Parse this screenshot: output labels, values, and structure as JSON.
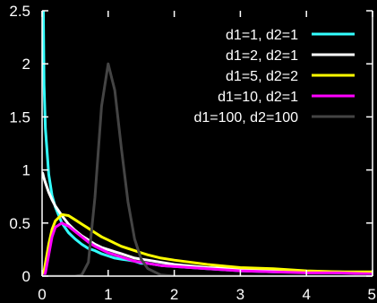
{
  "chart_data": {
    "type": "line",
    "title": "",
    "xlabel": "",
    "ylabel": "",
    "xlim": [
      0,
      5
    ],
    "ylim": [
      0,
      2.5
    ],
    "grid": false,
    "legend_position": "top-right",
    "background": "#000000",
    "axis_color": "#ffffff",
    "x_ticks": [
      {
        "value": 0,
        "label": "0"
      },
      {
        "value": 1,
        "label": "1"
      },
      {
        "value": 2,
        "label": "2"
      },
      {
        "value": 3,
        "label": "3"
      },
      {
        "value": 4,
        "label": "4"
      },
      {
        "value": 5,
        "label": "5"
      }
    ],
    "y_ticks": [
      {
        "value": 0,
        "label": "0"
      },
      {
        "value": 0.5,
        "label": "0.5"
      },
      {
        "value": 1,
        "label": "1"
      },
      {
        "value": 1.5,
        "label": "1.5"
      },
      {
        "value": 2,
        "label": "2"
      },
      {
        "value": 2.5,
        "label": "2.5"
      }
    ],
    "x": [
      0.01,
      0.03,
      0.05,
      0.1,
      0.15,
      0.2,
      0.3,
      0.4,
      0.5,
      0.6,
      0.7,
      0.8,
      0.9,
      1.0,
      1.1,
      1.2,
      1.3,
      1.4,
      1.5,
      1.6,
      1.8,
      2.0,
      2.5,
      3.0,
      3.5,
      4.0,
      4.5,
      5.0
    ],
    "series": [
      {
        "name": "d1=1, d2=1",
        "color": "#33ffff",
        "values": [
          3.17,
          1.8,
          1.39,
          0.96,
          0.76,
          0.65,
          0.5,
          0.41,
          0.35,
          0.3,
          0.26,
          0.24,
          0.21,
          0.19,
          0.17,
          0.16,
          0.15,
          0.14,
          0.12,
          0.12,
          0.1,
          0.09,
          0.07,
          0.05,
          0.04,
          0.04,
          0.03,
          0.03
        ]
      },
      {
        "name": "d1=2, d2=1",
        "color": "#ffffff",
        "values": [
          0.97,
          0.92,
          0.88,
          0.79,
          0.72,
          0.66,
          0.57,
          0.49,
          0.43,
          0.38,
          0.34,
          0.3,
          0.27,
          0.25,
          0.23,
          0.21,
          0.19,
          0.17,
          0.16,
          0.15,
          0.13,
          0.11,
          0.08,
          0.07,
          0.05,
          0.04,
          0.04,
          0.03
        ]
      },
      {
        "name": "d1=5, d2=2",
        "color": "#ffff00",
        "values": [
          0.01,
          0.05,
          0.12,
          0.3,
          0.44,
          0.52,
          0.58,
          0.57,
          0.53,
          0.49,
          0.45,
          0.41,
          0.37,
          0.34,
          0.31,
          0.28,
          0.26,
          0.24,
          0.22,
          0.2,
          0.17,
          0.15,
          0.11,
          0.08,
          0.07,
          0.05,
          0.04,
          0.04
        ]
      },
      {
        "name": "d1=10, d2=1",
        "color": "#ff00ff",
        "values": [
          0.0,
          0.0,
          0.03,
          0.2,
          0.37,
          0.46,
          0.5,
          0.47,
          0.42,
          0.37,
          0.32,
          0.28,
          0.25,
          0.22,
          0.2,
          0.18,
          0.16,
          0.14,
          0.13,
          0.12,
          0.1,
          0.09,
          0.07,
          0.05,
          0.04,
          0.03,
          0.03,
          0.02
        ]
      },
      {
        "name": "d1=100, d2=100",
        "color": "#444444",
        "values": [
          0.0,
          0.0,
          0.0,
          0.0,
          0.0,
          0.0,
          0.0,
          0.0,
          0.0,
          0.01,
          0.13,
          0.74,
          1.6,
          2.0,
          1.75,
          1.2,
          0.7,
          0.35,
          0.16,
          0.07,
          0.01,
          0.0,
          0.0,
          0.0,
          0.0,
          0.0,
          0.0,
          0.0
        ]
      }
    ]
  }
}
